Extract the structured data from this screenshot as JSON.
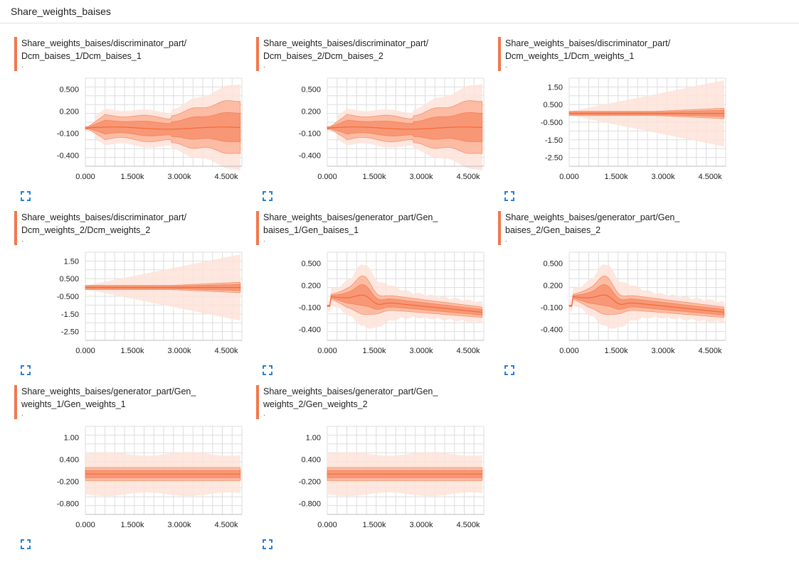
{
  "header": {
    "title": "Share_weights_baises"
  },
  "colors": {
    "accent": "#f0784e",
    "band_outer": "#fde3d9",
    "band_mid": "#fbb49a",
    "band_inner": "#f7906d",
    "line": "#f06a3c",
    "grid": "#dddddd"
  },
  "icons": {
    "expand": "expand-corners-icon"
  },
  "cards": [
    {
      "title": "Share_weights_baises/discriminator_part/Dcm_baises_1/Dcm_baises_1",
      "title_line1": "Share_weights_baises/discriminator_part/",
      "title_line2": "Dcm_baises_1/Dcm_baises_1",
      "subtitle": "."
    },
    {
      "title": "Share_weights_baises/discriminator_part/Dcm_baises_2/Dcm_baises_2",
      "title_line1": "Share_weights_baises/discriminator_part/",
      "title_line2": "Dcm_baises_2/Dcm_baises_2",
      "subtitle": "."
    },
    {
      "title": "Share_weights_baises/discriminator_part/Dcm_weights_1/Dcm_weights_1",
      "title_line1": "Share_weights_baises/discriminator_part/",
      "title_line2": "Dcm_weights_1/Dcm_weights_1",
      "subtitle": "."
    },
    {
      "title": "Share_weights_baises/discriminator_part/Dcm_weights_2/Dcm_weights_2",
      "title_line1": "Share_weights_baises/discriminator_part/",
      "title_line2": "Dcm_weights_2/Dcm_weights_2",
      "subtitle": "."
    },
    {
      "title": "Share_weights_baises/generator_part/Gen_baises_1/Gen_baises_1",
      "title_line1": "Share_weights_baises/generator_part/Gen_",
      "title_line2": "baises_1/Gen_baises_1",
      "subtitle": "."
    },
    {
      "title": "Share_weights_baises/generator_part/Gen_baises_2/Gen_baises_2",
      "title_line1": "Share_weights_baises/generator_part/Gen_",
      "title_line2": "baises_2/Gen_baises_2",
      "subtitle": "."
    },
    {
      "title": "Share_weights_baises/generator_part/Gen_weights_1/Gen_weights_1",
      "title_line1": "Share_weights_baises/generator_part/Gen_",
      "title_line2": "weights_1/Gen_weights_1",
      "subtitle": "."
    },
    {
      "title": "Share_weights_baises/generator_part/Gen_weights_2/Gen_weights_2",
      "title_line1": "Share_weights_baises/generator_part/Gen_",
      "title_line2": "weights_2/Gen_weights_2",
      "subtitle": "."
    }
  ],
  "chart_data": [
    {
      "type": "area",
      "shape": "expanding",
      "xlim": [
        0,
        5000
      ],
      "xticks": [
        "0.000",
        "1.500k",
        "3.000k",
        "4.500k"
      ],
      "xtick_values": [
        0,
        1500,
        3000,
        4500
      ],
      "ylim": [
        -0.55,
        0.65
      ],
      "yticks": [
        "0.500",
        "0.200",
        "-0.100",
        "-0.400"
      ],
      "ytick_values": [
        0.5,
        0.2,
        -0.1,
        -0.4
      ],
      "grid": true
    },
    {
      "type": "area",
      "shape": "expanding",
      "xlim": [
        0,
        5000
      ],
      "xticks": [
        "0.000",
        "1.500k",
        "3.000k",
        "4.500k"
      ],
      "xtick_values": [
        0,
        1500,
        3000,
        4500
      ],
      "ylim": [
        -0.55,
        0.65
      ],
      "yticks": [
        "0.500",
        "0.200",
        "-0.100",
        "-0.400"
      ],
      "ytick_values": [
        0.5,
        0.2,
        -0.1,
        -0.4
      ],
      "grid": true
    },
    {
      "type": "area",
      "shape": "flat",
      "xlim": [
        0,
        5000
      ],
      "xticks": [
        "0.000",
        "1.500k",
        "3.000k",
        "4.500k"
      ],
      "xtick_values": [
        0,
        1500,
        3000,
        4500
      ],
      "ylim": [
        -3.0,
        2.0
      ],
      "yticks": [
        "1.50",
        "0.500",
        "-0.500",
        "-1.50",
        "-2.50"
      ],
      "ytick_values": [
        1.5,
        0.5,
        -0.5,
        -1.5,
        -2.5
      ],
      "grid": true
    },
    {
      "type": "area",
      "shape": "flat",
      "xlim": [
        0,
        5000
      ],
      "xticks": [
        "0.000",
        "1.500k",
        "3.000k",
        "4.500k"
      ],
      "xtick_values": [
        0,
        1500,
        3000,
        4500
      ],
      "ylim": [
        -3.0,
        2.0
      ],
      "yticks": [
        "1.50",
        "0.500",
        "-0.500",
        "-1.50",
        "-2.50"
      ],
      "ytick_values": [
        1.5,
        0.5,
        -0.5,
        -1.5,
        -2.5
      ],
      "grid": true
    },
    {
      "type": "area",
      "shape": "wave",
      "xlim": [
        0,
        5000
      ],
      "xticks": [
        "0.000",
        "1.500k",
        "3.000k",
        "4.500k"
      ],
      "xtick_values": [
        0,
        1500,
        3000,
        4500
      ],
      "ylim": [
        -0.55,
        0.65
      ],
      "yticks": [
        "0.500",
        "0.200",
        "-0.100",
        "-0.400"
      ],
      "ytick_values": [
        0.5,
        0.2,
        -0.1,
        -0.4
      ],
      "grid": true
    },
    {
      "type": "area",
      "shape": "wave",
      "xlim": [
        0,
        5000
      ],
      "xticks": [
        "0.000",
        "1.500k",
        "3.000k",
        "4.500k"
      ],
      "xtick_values": [
        0,
        1500,
        3000,
        4500
      ],
      "ylim": [
        -0.55,
        0.65
      ],
      "yticks": [
        "0.500",
        "0.200",
        "-0.100",
        "-0.400"
      ],
      "ytick_values": [
        0.5,
        0.2,
        -0.1,
        -0.4
      ],
      "grid": true
    },
    {
      "type": "area",
      "shape": "steady",
      "xlim": [
        0,
        5000
      ],
      "xticks": [
        "0.000",
        "1.500k",
        "3.000k",
        "4.500k"
      ],
      "xtick_values": [
        0,
        1500,
        3000,
        4500
      ],
      "ylim": [
        -1.1,
        1.3
      ],
      "yticks": [
        "1.00",
        "0.400",
        "-0.200",
        "-0.800"
      ],
      "ytick_values": [
        1.0,
        0.4,
        -0.2,
        -0.8
      ],
      "grid": true
    },
    {
      "type": "area",
      "shape": "steady",
      "xlim": [
        0,
        5000
      ],
      "xticks": [
        "0.000",
        "1.500k",
        "3.000k",
        "4.500k"
      ],
      "xtick_values": [
        0,
        1500,
        3000,
        4500
      ],
      "ylim": [
        -1.1,
        1.3
      ],
      "yticks": [
        "1.00",
        "0.400",
        "-0.200",
        "-0.800"
      ],
      "ytick_values": [
        1.0,
        0.4,
        -0.2,
        -0.8
      ],
      "grid": true
    }
  ]
}
